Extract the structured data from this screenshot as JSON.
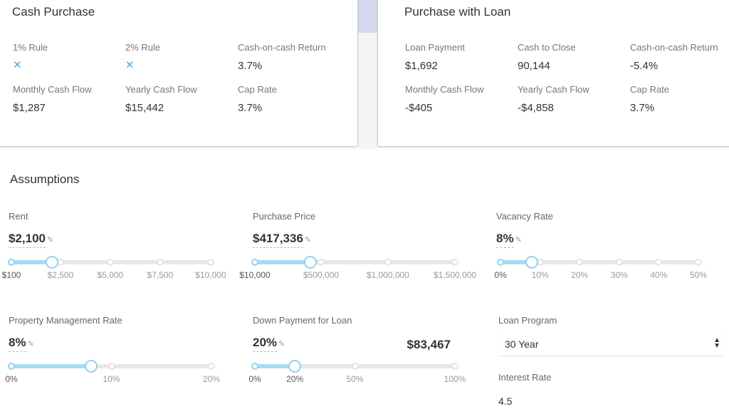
{
  "cash": {
    "title": "Cash Purchase",
    "items": [
      {
        "label": "1% Rule",
        "value": "✕",
        "icon": "x-icon"
      },
      {
        "label": "2% Rule",
        "value": "✕",
        "icon": "x-icon"
      },
      {
        "label": "Cash-on-cash Return",
        "value": "3.7%"
      },
      {
        "label": "Monthly Cash Flow",
        "value": "$1,287"
      },
      {
        "label": "Yearly Cash Flow",
        "value": "$15,442"
      },
      {
        "label": "Cap Rate",
        "value": "3.7%"
      }
    ]
  },
  "loan": {
    "title": "Purchase with Loan",
    "items": [
      {
        "label": "Loan Payment",
        "value": "$1,692"
      },
      {
        "label": "Cash to Close",
        "value": "90,144"
      },
      {
        "label": "Cash-on-cash Return",
        "value": "-5.4%"
      },
      {
        "label": "Monthly Cash Flow",
        "value": "-$405"
      },
      {
        "label": "Yearly Cash Flow",
        "value": "-$4,858"
      },
      {
        "label": "Cap Rate",
        "value": "3.7%"
      }
    ]
  },
  "assumptions": {
    "title": "Assumptions",
    "rent": {
      "label": "Rent",
      "value": "$2,100",
      "ticks": [
        "$100",
        "$2,500",
        "$5,000",
        "$7,500",
        "$10,000"
      ],
      "position": 0.29
    },
    "price": {
      "label": "Purchase Price",
      "value": "$417,336",
      "ticks": [
        "$10,000",
        "$500,000",
        "$1,000,000",
        "$1,500,000"
      ],
      "position": 0.28
    },
    "vacancy": {
      "label": "Vacancy Rate",
      "value": "8%",
      "ticks": [
        "0%",
        "10%",
        "20%",
        "30%",
        "40%",
        "50%"
      ],
      "position": 0.16
    },
    "pm": {
      "label": "Property Management Rate",
      "value": "8%",
      "ticks": [
        "0%",
        "10%",
        "20%"
      ],
      "position": 0.4
    },
    "down": {
      "label": "Down Payment for Loan",
      "value": "20%",
      "amount": "$83,467",
      "ticks": [
        "0%",
        "20%",
        "50%",
        "100%"
      ],
      "position": 0.2
    },
    "program": {
      "label": "Loan Program",
      "value": "30 Year"
    },
    "interest": {
      "label": "Interest Rate",
      "value": "4.5"
    }
  },
  "colors": {
    "accent": "#8fd3f5",
    "x": "#4aa8e6"
  }
}
